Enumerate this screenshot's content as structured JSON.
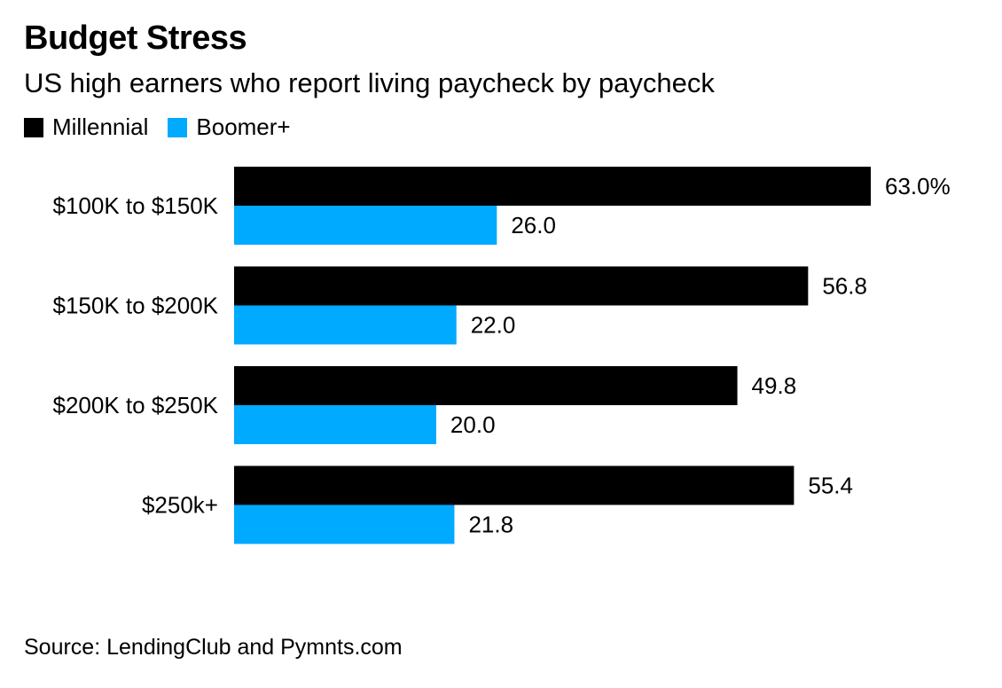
{
  "title": "Budget Stress",
  "subtitle": "US high earners who report living paycheck by paycheck",
  "source": "Source: LendingClub and Pymnts.com",
  "colors": {
    "millennial": "#000000",
    "boomer": "#00aaff"
  },
  "chart_data": {
    "type": "bar",
    "orientation": "horizontal",
    "categories": [
      "$100K to $150K",
      "$150K to $200K",
      "$200K to $250K",
      "$250k+"
    ],
    "series": [
      {
        "name": "Millennial",
        "values": [
          63.0,
          56.8,
          49.8,
          55.4
        ],
        "labels": [
          "63.0%",
          "56.8",
          "49.8",
          "55.4"
        ]
      },
      {
        "name": "Boomer+",
        "values": [
          26.0,
          22.0,
          20.0,
          21.8
        ],
        "labels": [
          "26.0",
          "22.0",
          "20.0",
          "21.8"
        ]
      }
    ],
    "xlim": [
      0,
      70
    ],
    "legend": "top-left",
    "grid": false
  }
}
